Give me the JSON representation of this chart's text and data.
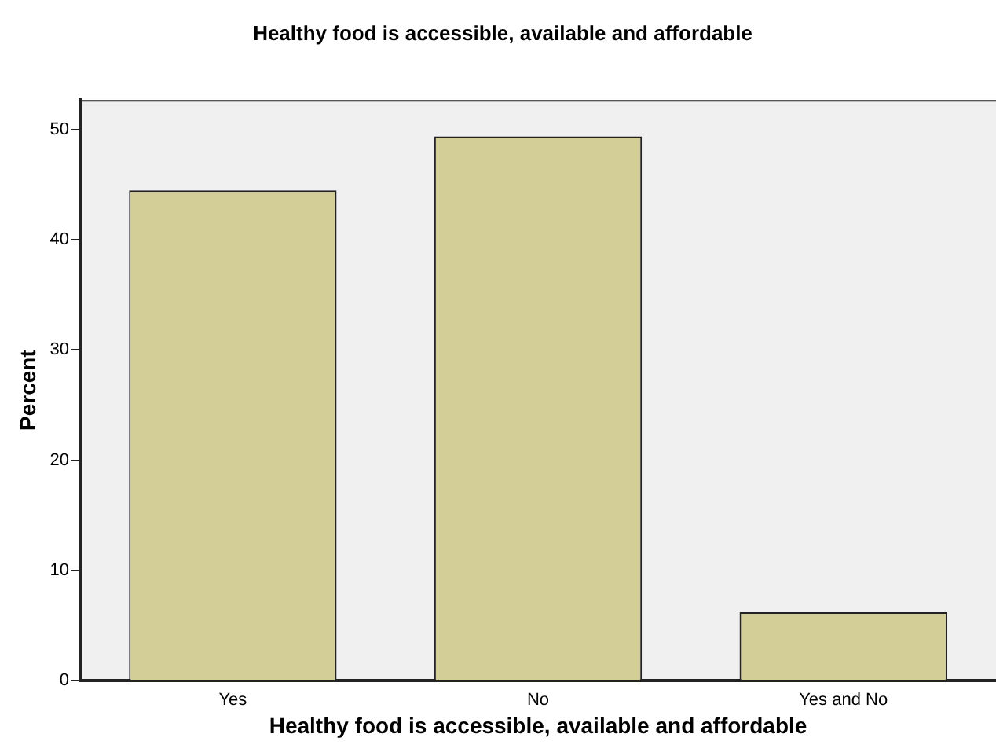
{
  "chart_data": {
    "type": "bar",
    "title": "Healthy food is accessible, available and affordable",
    "xlabel": "Healthy food is accessible, available and affordable",
    "ylabel": "Percent",
    "categories": [
      "Yes",
      "No",
      "Yes and No"
    ],
    "values": [
      44.5,
      49.4,
      6.2
    ],
    "color": "#d3ce97",
    "ylim": [
      0,
      52.7
    ],
    "yticks": [
      0,
      10,
      20,
      30,
      40,
      50
    ],
    "grid": false,
    "legend": false
  }
}
